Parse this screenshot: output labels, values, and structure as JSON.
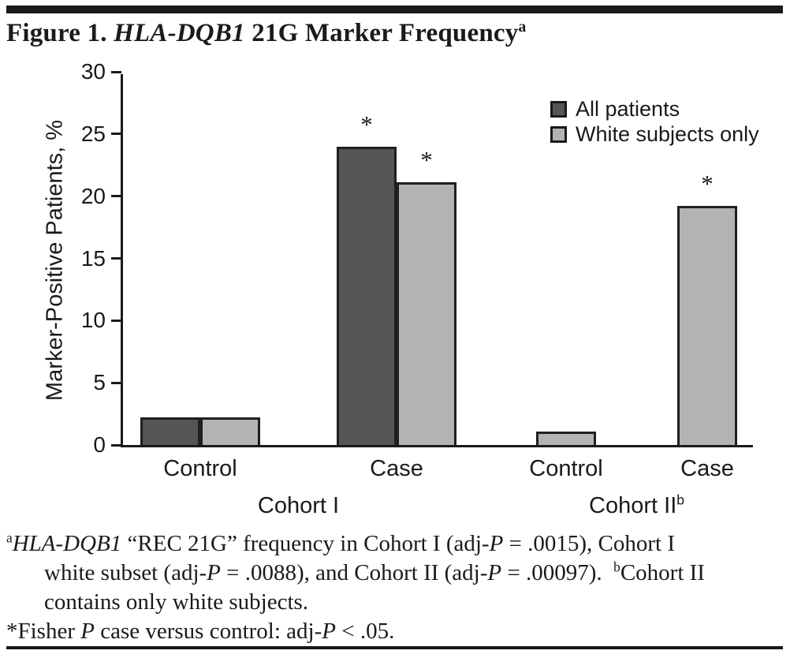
{
  "title": {
    "segments": [
      {
        "text": "Figure 1. "
      },
      {
        "text": "HLA-DQB1",
        "italic": true
      },
      {
        "text": " 21G Marker Frequency"
      },
      {
        "text": "a",
        "sup": true
      }
    ]
  },
  "chart_data": {
    "type": "bar",
    "title": "Figure 1. HLA-DQB1 21G Marker Frequency",
    "ylabel": "Marker-Positive Patients, %",
    "xlabel": "",
    "ylim": [
      0,
      30
    ],
    "yticks": [
      0,
      5,
      10,
      15,
      20,
      25,
      30
    ],
    "grid": false,
    "legend_position": "top-right",
    "legend": [
      {
        "label": "All patients",
        "color": "#555555"
      },
      {
        "label": "White subjects only",
        "color": "#b3b3b3"
      }
    ],
    "significance_marker": "*",
    "groups": [
      {
        "label": "Cohort I",
        "label_sup": "",
        "categories": [
          {
            "label": "Control",
            "bars": [
              {
                "series": "All patients",
                "value": 2.2,
                "significant": false
              },
              {
                "series": "White subjects only",
                "value": 2.2,
                "significant": false
              }
            ]
          },
          {
            "label": "Case",
            "bars": [
              {
                "series": "All patients",
                "value": 24.0,
                "significant": true
              },
              {
                "series": "White subjects only",
                "value": 21.1,
                "significant": true
              }
            ]
          }
        ]
      },
      {
        "label": "Cohort II",
        "label_sup": "b",
        "categories": [
          {
            "label": "Control",
            "bars": [
              {
                "series": "White subjects only",
                "value": 1.1,
                "significant": false
              }
            ]
          },
          {
            "label": "Case",
            "bars": [
              {
                "series": "White subjects only",
                "value": 19.2,
                "significant": true
              }
            ]
          }
        ]
      }
    ]
  },
  "footnotes": {
    "a": {
      "segments": [
        {
          "text": "a",
          "sup": true
        },
        {
          "text": "HLA-DQB1",
          "italic": true
        },
        {
          "text": " “REC 21G” frequency in Cohort I (adj-"
        },
        {
          "text": "P",
          "italic": true
        },
        {
          "text": " = .0015), Cohort I"
        },
        {
          "br": true
        },
        {
          "text": "white subset (adj-"
        },
        {
          "text": "P",
          "italic": true
        },
        {
          "text": " = .0088), and Cohort II (adj-"
        },
        {
          "text": "P",
          "italic": true
        },
        {
          "text": " = .00097). "
        },
        {
          "text": "b",
          "sup": true
        },
        {
          "text": "Cohort II"
        },
        {
          "br": true
        },
        {
          "text": "contains only white subjects."
        }
      ]
    },
    "asterisk": {
      "segments": [
        {
          "text": "*Fisher "
        },
        {
          "text": "P",
          "italic": true
        },
        {
          "text": " case versus control: adj-"
        },
        {
          "text": "P",
          "italic": true
        },
        {
          "text": " < .05."
        }
      ]
    }
  },
  "colors": {
    "ink": "#1a1a1a",
    "bar_dark": "#555555",
    "bar_light": "#b3b3b3",
    "background": "#ffffff"
  }
}
